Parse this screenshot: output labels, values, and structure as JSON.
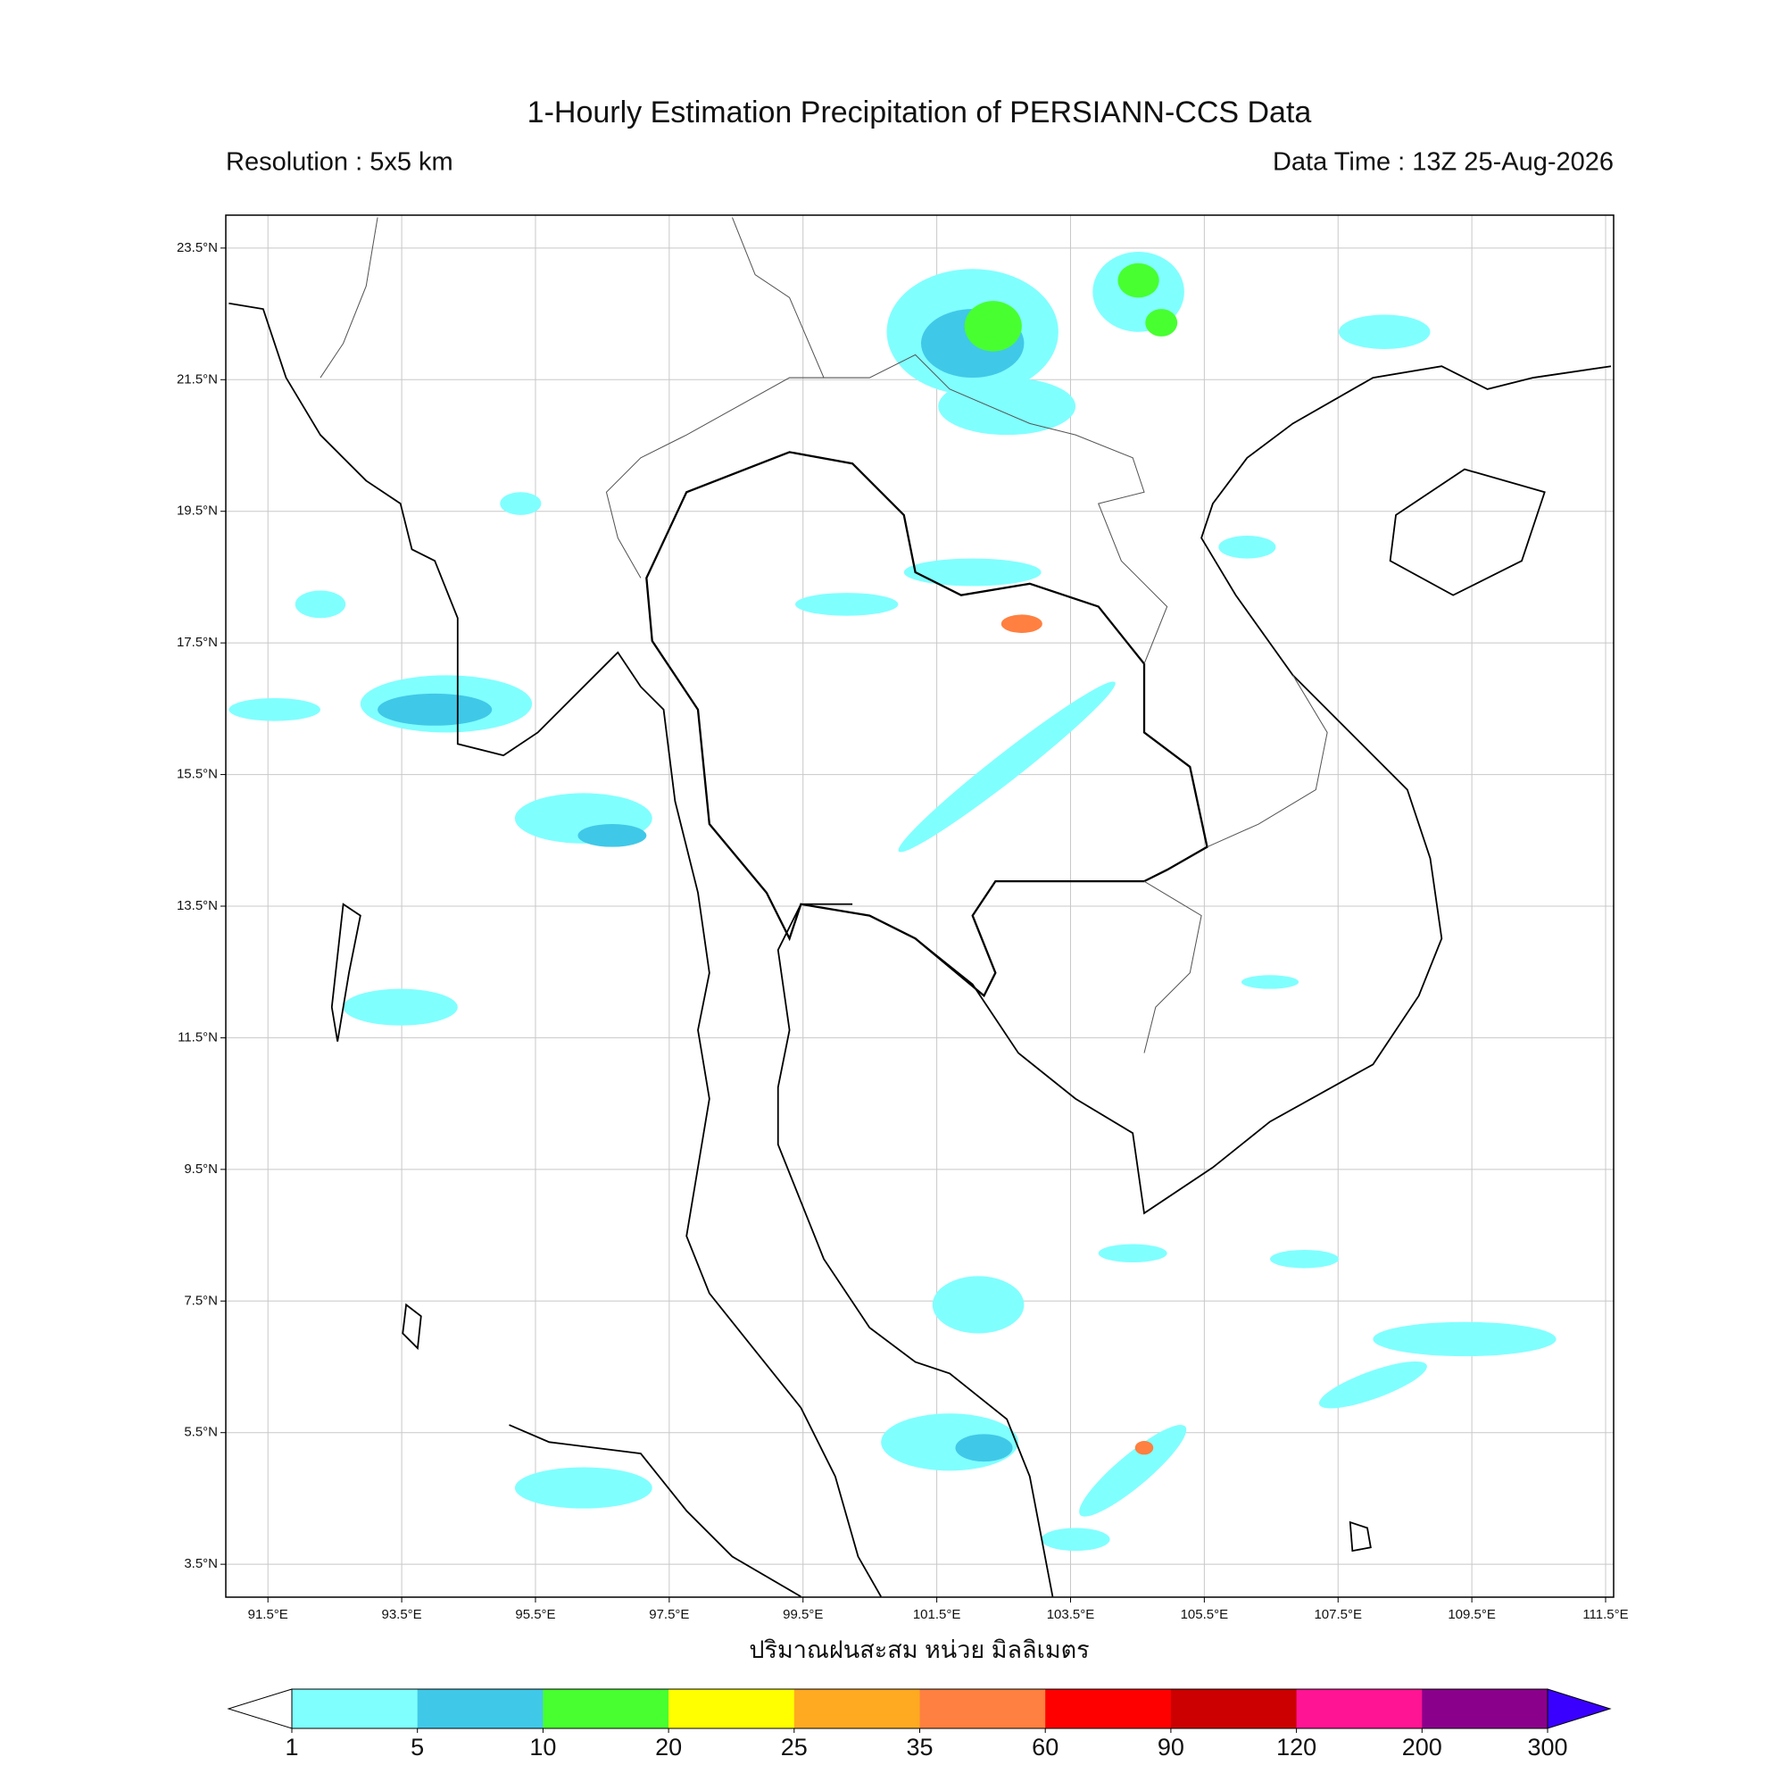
{
  "title": "1-Hourly Estimation Precipitation of PERSIANN-CCS Data",
  "resolution": "Resolution : 5x5 km",
  "data_time": "Data Time : 13Z 25-Aug-2026",
  "map": {
    "lonlim": [
      90.87,
      111.62
    ],
    "latlim": [
      3.0,
      24.0
    ],
    "lon_ticks": [
      {
        "value": 91.5,
        "label": "91.5°E"
      },
      {
        "value": 93.5,
        "label": "93.5°E"
      },
      {
        "value": 95.5,
        "label": "95.5°E"
      },
      {
        "value": 97.5,
        "label": "97.5°E"
      },
      {
        "value": 99.5,
        "label": "99.5°E"
      },
      {
        "value": 101.5,
        "label": "101.5°E"
      },
      {
        "value": 103.5,
        "label": "103.5°E"
      },
      {
        "value": 105.5,
        "label": "105.5°E"
      },
      {
        "value": 107.5,
        "label": "107.5°E"
      },
      {
        "value": 109.5,
        "label": "109.5°E"
      },
      {
        "value": 111.5,
        "label": "111.5°E"
      }
    ],
    "lat_ticks": [
      {
        "value": 3.5,
        "label": "3.5°N"
      },
      {
        "value": 5.5,
        "label": "5.5°N"
      },
      {
        "value": 7.5,
        "label": "7.5°N"
      },
      {
        "value": 9.5,
        "label": "9.5°N"
      },
      {
        "value": 11.5,
        "label": "11.5°N"
      },
      {
        "value": 13.5,
        "label": "13.5°N"
      },
      {
        "value": 15.5,
        "label": "15.5°N"
      },
      {
        "value": 17.5,
        "label": "17.5°N"
      },
      {
        "value": 19.5,
        "label": "19.5°N"
      },
      {
        "value": 21.5,
        "label": "21.5°N"
      },
      {
        "value": 23.5,
        "label": "23.5°N"
      }
    ],
    "grid": true
  },
  "colorbar": {
    "label": "ปริมาณฝนสะสม หน่วย มิลลิเมตร",
    "levels": [
      1,
      5,
      10,
      20,
      25,
      35,
      60,
      90,
      120,
      200,
      300
    ],
    "colors": [
      "#80ffff",
      "#40c8e8",
      "#48ff30",
      "#ffff00",
      "#ffaa20",
      "#ff8040",
      "#ff0000",
      "#cc0000",
      "#ff1493",
      "#8b008b"
    ],
    "under_color": "#ffffff",
    "over_color": "#3a00ff"
  }
}
